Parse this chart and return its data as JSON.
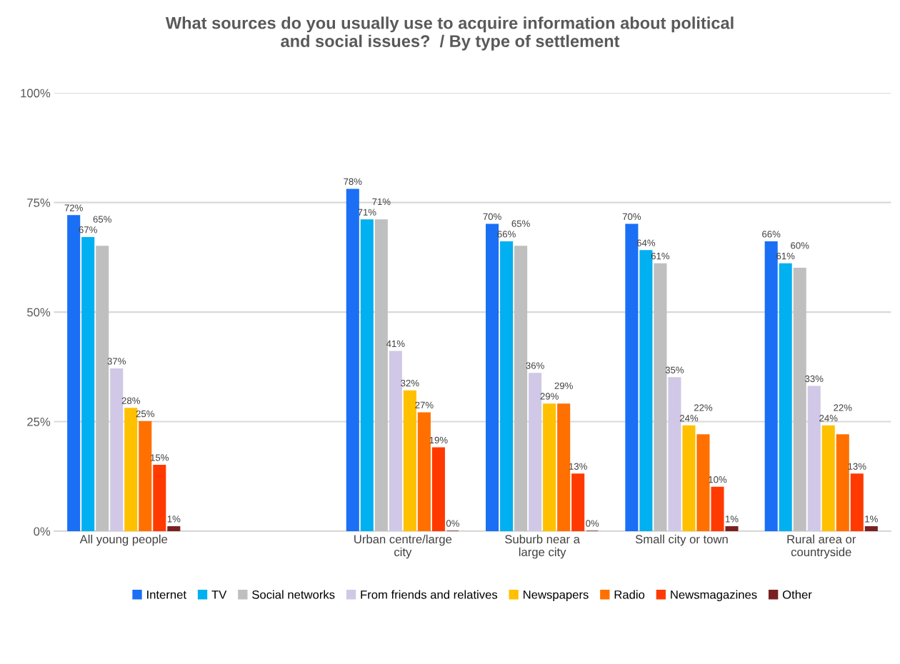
{
  "chart_data": {
    "type": "bar",
    "title": "What sources do you usually use to acquire information about political\nand social issues?  / By type of settlement",
    "categories": [
      "All young people",
      null,
      "Urban centre/large\ncity",
      "Suburb near a\nlarge city",
      "Small city or town",
      "Rural area or\ncountryside"
    ],
    "series": [
      {
        "name": "Internet",
        "color": "#1a6ff5",
        "values": [
          72,
          null,
          78,
          70,
          70,
          66
        ],
        "value_labels": [
          "72%",
          null,
          "78%",
          "70%",
          "70%",
          "66%"
        ]
      },
      {
        "name": "TV",
        "color": "#00b0f0",
        "values": [
          67,
          null,
          71,
          66,
          64,
          61
        ],
        "value_labels": [
          "67%",
          null,
          "71%",
          "66%",
          "64%",
          "61%"
        ]
      },
      {
        "name": "Social networks",
        "color": "#bfbfbf",
        "values": [
          65,
          null,
          71,
          65,
          61,
          60
        ],
        "value_labels": [
          "65%",
          null,
          "71%",
          "65%",
          "61%",
          "60%"
        ]
      },
      {
        "name": "From friends and relatives",
        "color": "#d0c8e6",
        "values": [
          37,
          null,
          41,
          36,
          35,
          33
        ],
        "value_labels": [
          "37%",
          null,
          "41%",
          "36%",
          "35%",
          "33%"
        ]
      },
      {
        "name": "Newspapers",
        "color": "#ffc000",
        "values": [
          28,
          null,
          32,
          29,
          24,
          24
        ],
        "value_labels": [
          "28%",
          null,
          "32%",
          "29%",
          "24%",
          "24%"
        ]
      },
      {
        "name": "Radio",
        "color": "#ff7000",
        "values": [
          25,
          null,
          27,
          29,
          22,
          22
        ],
        "value_labels": [
          "25%",
          null,
          "27%",
          "29%",
          "22%",
          "22%"
        ]
      },
      {
        "name": "Newsmagazines",
        "color": "#ff3a00",
        "values": [
          15,
          null,
          19,
          13,
          10,
          13
        ],
        "value_labels": [
          "15%",
          null,
          "19%",
          "13%",
          "10%",
          "13%"
        ]
      },
      {
        "name": "Other",
        "color": "#7b2020",
        "values": [
          1,
          null,
          0,
          0,
          1,
          1
        ],
        "value_labels": [
          "1%",
          null,
          "0%",
          "0%",
          "1%",
          "1%"
        ]
      }
    ],
    "ylim": [
      0,
      100
    ],
    "yticks": [
      {
        "value": 0,
        "label": "0%"
      },
      {
        "value": 25,
        "label": "25%"
      },
      {
        "value": 50,
        "label": "50%"
      },
      {
        "value": 75,
        "label": "75%"
      },
      {
        "value": 100,
        "label": "100%"
      }
    ],
    "grid": "y",
    "legend": "bottom"
  }
}
